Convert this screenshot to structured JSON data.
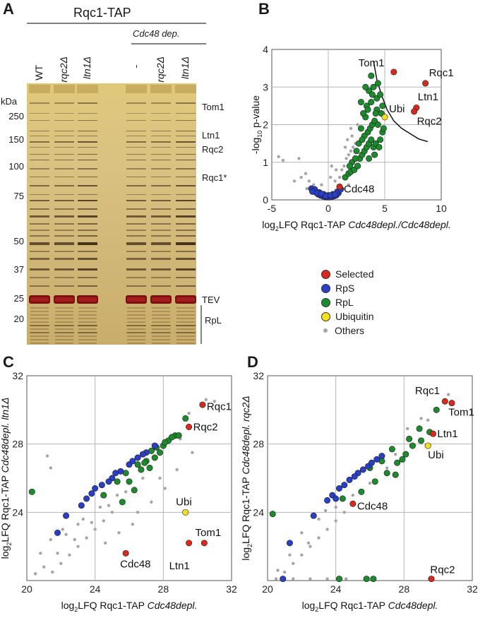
{
  "panels": {
    "a": {
      "letter": "A",
      "title": "Rqc1-TAP",
      "subgroup": "Cdc48 dep.",
      "kda_label": "kDa",
      "lanes": [
        "WT",
        "rqc2Δ",
        "ltn1Δ",
        "",
        "-",
        "rqc2Δ",
        "ltn1Δ"
      ],
      "markers": [
        "250",
        "150",
        "100",
        "75",
        "50",
        "37",
        "25",
        "20"
      ],
      "band_labels": [
        "Tom1",
        "Ltn1",
        "Rqc2",
        "Rqc1*",
        "TEV",
        "RpL"
      ]
    },
    "b": {
      "letter": "B"
    },
    "c": {
      "letter": "C"
    },
    "d": {
      "letter": "D"
    }
  },
  "legend": {
    "items": [
      {
        "label": "Selected",
        "color": "#d62a20"
      },
      {
        "label": "RpS",
        "color": "#2a3fc4"
      },
      {
        "label": "RpL",
        "color": "#1e8a2e"
      },
      {
        "label": "Ubiquitin",
        "color": "#f2e020"
      },
      {
        "label": "Others",
        "color": "#a6a6a6"
      }
    ]
  },
  "chart_data": [
    {
      "id": "B",
      "type": "scatter",
      "xlabel_main": "log",
      "xlabel_sub": "2",
      "xlabel_rest": "LFQ Rqc1-TAP ",
      "xlabel_italic": "Cdc48depl./Cdc48depl.",
      "ylabel_pre": "-log",
      "ylabel_sub": "10",
      "ylabel_post": " p-value",
      "xlim": [
        -5,
        10
      ],
      "ylim": [
        0,
        4
      ],
      "xticks": [
        "-5",
        "0",
        "5",
        "10"
      ],
      "yticks": [
        "0",
        "1",
        "2",
        "3",
        "4"
      ],
      "labels": [
        {
          "text": "Tom1",
          "x": 5.8,
          "y": 3.4
        },
        {
          "text": "Rqc1",
          "x": 8.6,
          "y": 3.1
        },
        {
          "text": "Ltn1",
          "x": 7.8,
          "y": 2.4
        },
        {
          "text": "Rqc2",
          "x": 7.6,
          "y": 2.3
        },
        {
          "text": "Ubi",
          "x": 5.0,
          "y": 2.2
        },
        {
          "text": "Cdc48",
          "x": 1.0,
          "y": 0.35
        }
      ],
      "selected": [
        [
          5.8,
          3.4
        ],
        [
          8.6,
          3.1
        ],
        [
          7.8,
          2.45
        ],
        [
          7.6,
          2.35
        ],
        [
          1.0,
          0.35
        ]
      ],
      "ubiquitin": [
        [
          5.0,
          2.2
        ]
      ],
      "rps": [
        [
          -1.5,
          0.3
        ],
        [
          -1.3,
          0.25
        ],
        [
          -1.1,
          0.2
        ],
        [
          -0.9,
          0.15
        ],
        [
          -0.7,
          0.12
        ],
        [
          -0.5,
          0.1
        ],
        [
          -0.3,
          0.08
        ],
        [
          -0.1,
          0.07
        ],
        [
          0.1,
          0.07
        ],
        [
          0.3,
          0.08
        ],
        [
          0.5,
          0.1
        ],
        [
          0.7,
          0.12
        ],
        [
          0.9,
          0.18
        ],
        [
          -1.2,
          0.28
        ],
        [
          -0.8,
          0.2
        ],
        [
          -0.4,
          0.15
        ],
        [
          0.0,
          0.12
        ],
        [
          0.4,
          0.15
        ],
        [
          0.8,
          0.22
        ],
        [
          1.1,
          0.28
        ],
        [
          -1.4,
          0.22
        ],
        [
          -1.0,
          0.18
        ],
        [
          -0.6,
          0.16
        ],
        [
          -0.2,
          0.1
        ],
        [
          0.2,
          0.12
        ],
        [
          0.6,
          0.14
        ]
      ],
      "rpl": [
        [
          1.5,
          0.6
        ],
        [
          1.8,
          0.7
        ],
        [
          2.0,
          0.75
        ],
        [
          2.3,
          0.8
        ],
        [
          2.6,
          0.9
        ],
        [
          2.1,
          1.0
        ],
        [
          2.8,
          1.1
        ],
        [
          3.0,
          1.2
        ],
        [
          3.2,
          1.3
        ],
        [
          3.4,
          1.4
        ],
        [
          3.6,
          1.5
        ],
        [
          3.8,
          1.6
        ],
        [
          4.0,
          1.4
        ],
        [
          4.2,
          1.5
        ],
        [
          3.5,
          1.8
        ],
        [
          3.7,
          1.9
        ],
        [
          3.9,
          2.0
        ],
        [
          4.1,
          2.1
        ],
        [
          3.3,
          2.2
        ],
        [
          3.1,
          2.3
        ],
        [
          2.9,
          1.9
        ],
        [
          3.4,
          2.5
        ],
        [
          3.8,
          2.6
        ],
        [
          4.3,
          2.7
        ],
        [
          4.6,
          2.8
        ],
        [
          3.6,
          2.9
        ],
        [
          4.0,
          3.0
        ],
        [
          4.4,
          3.1
        ],
        [
          3.8,
          3.3
        ],
        [
          4.3,
          2.4
        ],
        [
          4.7,
          2.3
        ],
        [
          4.8,
          1.8
        ],
        [
          4.5,
          1.4
        ],
        [
          4.9,
          1.9
        ],
        [
          3.2,
          1.7
        ],
        [
          2.7,
          1.5
        ],
        [
          2.5,
          1.3
        ],
        [
          4.1,
          1.2
        ],
        [
          3.0,
          1.6
        ],
        [
          4.4,
          2.0
        ],
        [
          4.6,
          1.6
        ],
        [
          3.6,
          1.1
        ],
        [
          2.4,
          1.1
        ],
        [
          1.9,
          0.9
        ],
        [
          3.9,
          2.8
        ],
        [
          4.2,
          2.3
        ],
        [
          3.5,
          2.4
        ],
        [
          4.8,
          2.5
        ],
        [
          2.9,
          2.6
        ],
        [
          3.3,
          3.0
        ]
      ],
      "others": [
        [
          -3.0,
          0.5
        ],
        [
          -2.4,
          0.6
        ],
        [
          -2.0,
          0.7
        ],
        [
          -1.7,
          0.5
        ],
        [
          -1.3,
          0.4
        ],
        [
          0.2,
          0.6
        ],
        [
          0.6,
          0.5
        ],
        [
          1.0,
          0.6
        ],
        [
          1.2,
          0.8
        ],
        [
          1.4,
          0.9
        ],
        [
          1.6,
          1.1
        ],
        [
          1.8,
          1.2
        ],
        [
          2.0,
          1.3
        ],
        [
          2.2,
          1.4
        ],
        [
          2.4,
          1.5
        ],
        [
          1.7,
          1.6
        ],
        [
          2.1,
          1.7
        ],
        [
          1.3,
          0.3
        ],
        [
          1.8,
          0.4
        ],
        [
          0.9,
          0.35
        ],
        [
          -0.6,
          0.4
        ],
        [
          -1.9,
          0.3
        ],
        [
          -2.6,
          1.1
        ],
        [
          -4.0,
          1.05
        ],
        [
          -4.4,
          1.15
        ],
        [
          2.6,
          2.0
        ],
        [
          2.0,
          1.9
        ],
        [
          1.5,
          1.4
        ],
        [
          0.7,
          0.8
        ],
        [
          0.3,
          0.9
        ]
      ],
      "threshold_curve": [
        [
          4.0,
          3.7
        ],
        [
          4.3,
          3.2
        ],
        [
          4.7,
          2.8
        ],
        [
          5.2,
          2.4
        ],
        [
          5.8,
          2.1
        ],
        [
          6.5,
          1.9
        ],
        [
          7.3,
          1.75
        ],
        [
          8.0,
          1.62
        ],
        [
          8.8,
          1.55
        ]
      ]
    },
    {
      "id": "C",
      "type": "scatter",
      "xlabel_main": "log",
      "xlabel_sub": "2",
      "xlabel_rest": "LFQ Rqc1-TAP ",
      "xlabel_italic": "Cdc48depl.",
      "ylabel_pre": "log",
      "ylabel_sub": "2",
      "ylabel_post": "LFQ Rqc1-TAP ",
      "ylabel_italic": "Cdc48depl. ltn1Δ",
      "xlim": [
        20,
        32
      ],
      "ylim": [
        20,
        32
      ],
      "xticks": [
        "20",
        "24",
        "28",
        "32"
      ],
      "yticks": [
        "24",
        "28",
        "32"
      ],
      "labels": [
        {
          "text": "Rqc1",
          "x": 30.3,
          "y": 30.2
        },
        {
          "text": "Rqc2",
          "x": 29.5,
          "y": 29.0
        },
        {
          "text": "Ubi",
          "x": 29.4,
          "y": 24.0
        },
        {
          "text": "Tom1",
          "x": 30.2,
          "y": 22.2
        },
        {
          "text": "Ltn1",
          "x": 29.5,
          "y": 21.5
        },
        {
          "text": "Cdc48",
          "x": 25.8,
          "y": 21.6
        }
      ],
      "selected": [
        [
          30.3,
          30.3
        ],
        [
          29.5,
          29.0
        ],
        [
          30.4,
          22.2
        ],
        [
          29.5,
          22.2
        ],
        [
          25.8,
          21.6
        ]
      ],
      "ubiquitin": [
        [
          29.3,
          24.0
        ]
      ],
      "rps": [
        [
          22.3,
          23.8
        ],
        [
          21.8,
          22.8
        ],
        [
          23.2,
          24.4
        ],
        [
          23.8,
          25.1
        ],
        [
          24.4,
          25.6
        ],
        [
          25.0,
          26.0
        ],
        [
          25.5,
          26.4
        ],
        [
          26.0,
          26.8
        ],
        [
          26.5,
          27.2
        ],
        [
          27.0,
          27.5
        ],
        [
          27.5,
          27.9
        ],
        [
          24.0,
          25.4
        ],
        [
          25.2,
          26.3
        ],
        [
          26.2,
          27.0
        ],
        [
          24.8,
          25.8
        ],
        [
          23.5,
          24.8
        ],
        [
          26.8,
          27.4
        ]
      ],
      "rpl": [
        [
          20.3,
          25.2
        ],
        [
          24.5,
          25.0
        ],
        [
          25.6,
          24.6
        ],
        [
          26.3,
          25.3
        ],
        [
          27.2,
          26.6
        ],
        [
          26.7,
          26.5
        ],
        [
          27.8,
          27.5
        ],
        [
          28.3,
          28.2
        ],
        [
          28.7,
          28.5
        ],
        [
          28.0,
          27.9
        ],
        [
          27.5,
          27.2
        ],
        [
          27.0,
          27.0
        ],
        [
          26.5,
          26.8
        ],
        [
          25.8,
          26.3
        ],
        [
          25.3,
          25.8
        ],
        [
          26.0,
          25.8
        ],
        [
          27.3,
          27.6
        ],
        [
          28.5,
          28.4
        ],
        [
          29.3,
          29.5
        ],
        [
          28.9,
          28.5
        ],
        [
          27.6,
          27.8
        ],
        [
          26.9,
          26.9
        ],
        [
          28.1,
          28.1
        ]
      ],
      "others": [
        [
          21.5,
          20.5
        ],
        [
          22.0,
          21.0
        ],
        [
          22.5,
          21.5
        ],
        [
          23.0,
          22.0
        ],
        [
          23.5,
          22.5
        ],
        [
          24.0,
          23.0
        ],
        [
          24.5,
          23.5
        ],
        [
          25.0,
          24.0
        ],
        [
          21.0,
          20.8
        ],
        [
          21.8,
          21.6
        ],
        [
          22.8,
          22.4
        ],
        [
          23.8,
          23.4
        ],
        [
          24.8,
          24.4
        ],
        [
          25.8,
          25.2
        ],
        [
          26.8,
          26.0
        ],
        [
          22.3,
          22.7
        ],
        [
          23.3,
          23.6
        ],
        [
          24.3,
          24.3
        ],
        [
          25.3,
          25.0
        ],
        [
          20.8,
          21.6
        ],
        [
          21.4,
          22.4
        ],
        [
          22.1,
          23.0
        ],
        [
          23.0,
          23.3
        ],
        [
          21.2,
          27.3
        ],
        [
          21.4,
          26.6
        ],
        [
          24.6,
          22.2
        ],
        [
          25.4,
          22.8
        ],
        [
          26.2,
          23.3
        ],
        [
          27.3,
          24.6
        ],
        [
          28.1,
          25.4
        ],
        [
          28.8,
          26.5
        ],
        [
          29.7,
          27.5
        ],
        [
          29.0,
          28.3
        ],
        [
          20.5,
          20.4
        ],
        [
          26.5,
          24.0
        ],
        [
          27.8,
          26.0
        ],
        [
          29.5,
          29.8
        ],
        [
          30.5,
          30.6
        ],
        [
          31.0,
          30.5
        ]
      ]
    },
    {
      "id": "D",
      "type": "scatter",
      "xlabel_main": "log",
      "xlabel_sub": "2",
      "xlabel_rest": "LFQ Rqc1-TAP ",
      "xlabel_italic": "Cdc48depl.",
      "ylabel_pre": "log",
      "ylabel_sub": "2",
      "ylabel_post": "LFQ Rqc1-TAP ",
      "ylabel_italic": "Cdc48depl. rqc2Δ",
      "xlim": [
        20,
        32
      ],
      "ylim": [
        20,
        32
      ],
      "xticks": [
        "20",
        "24",
        "28",
        "32"
      ],
      "yticks": [
        "24",
        "28",
        "32"
      ],
      "labels": [
        {
          "text": "Rqc1",
          "x": 30.3,
          "y": 30.6
        },
        {
          "text": "Tom1",
          "x": 30.6,
          "y": 30.4
        },
        {
          "text": "Ltn1",
          "x": 29.7,
          "y": 28.6
        },
        {
          "text": "Ubi",
          "x": 29.4,
          "y": 27.9
        },
        {
          "text": "Cdc48",
          "x": 25.0,
          "y": 24.5
        },
        {
          "text": "Rqc2",
          "x": 29.7,
          "y": 20.1
        }
      ],
      "selected": [
        [
          30.4,
          30.5
        ],
        [
          30.8,
          30.4
        ],
        [
          29.7,
          28.6
        ],
        [
          25.0,
          24.5
        ],
        [
          29.6,
          20.1
        ]
      ],
      "ubiquitin": [
        [
          29.4,
          27.9
        ]
      ],
      "rps": [
        [
          20.9,
          20.1
        ],
        [
          21.3,
          22.2
        ],
        [
          22.7,
          23.8
        ],
        [
          23.5,
          24.7
        ],
        [
          24.2,
          25.4
        ],
        [
          24.8,
          25.9
        ],
        [
          25.3,
          26.3
        ],
        [
          25.9,
          26.7
        ],
        [
          26.4,
          27.1
        ],
        [
          24.5,
          25.6
        ],
        [
          25.6,
          26.5
        ],
        [
          23.8,
          25.0
        ],
        [
          26.1,
          26.9
        ],
        [
          25.1,
          26.1
        ],
        [
          24.0,
          24.8
        ],
        [
          26.7,
          27.3
        ]
      ],
      "rpl": [
        [
          20.3,
          23.9
        ],
        [
          24.4,
          24.8
        ],
        [
          25.5,
          25.2
        ],
        [
          26.3,
          25.8
        ],
        [
          27.0,
          26.3
        ],
        [
          27.6,
          26.9
        ],
        [
          28.1,
          27.4
        ],
        [
          28.5,
          27.9
        ],
        [
          29.0,
          28.2
        ],
        [
          29.5,
          28.7
        ],
        [
          29.9,
          30.0
        ],
        [
          27.3,
          27.7
        ],
        [
          26.7,
          27.0
        ],
        [
          28.9,
          28.9
        ],
        [
          27.9,
          27.1
        ],
        [
          26.0,
          26.6
        ],
        [
          25.8,
          20.1
        ],
        [
          26.2,
          20.1
        ],
        [
          24.2,
          20.1
        ],
        [
          27.5,
          26.2
        ],
        [
          28.3,
          28.3
        ]
      ],
      "others": [
        [
          21.0,
          20.5
        ],
        [
          21.5,
          21.0
        ],
        [
          22.0,
          21.5
        ],
        [
          22.5,
          22.0
        ],
        [
          23.0,
          22.5
        ],
        [
          23.5,
          23.0
        ],
        [
          24.0,
          23.5
        ],
        [
          24.5,
          24.0
        ],
        [
          25.0,
          24.5
        ],
        [
          22.0,
          22.8
        ],
        [
          23.0,
          23.6
        ],
        [
          24.0,
          24.3
        ],
        [
          25.0,
          25.0
        ],
        [
          26.0,
          25.7
        ],
        [
          27.0,
          26.6
        ],
        [
          21.3,
          21.5
        ],
        [
          22.4,
          22.2
        ],
        [
          23.4,
          24.1
        ],
        [
          20.5,
          20.1
        ],
        [
          21.5,
          20.1
        ],
        [
          22.5,
          20.1
        ],
        [
          23.5,
          20.1
        ],
        [
          24.6,
          20.1
        ],
        [
          20.6,
          20.6
        ],
        [
          28.2,
          28.9
        ],
        [
          29.4,
          29.4
        ],
        [
          30.6,
          30.9
        ],
        [
          29.0,
          29.5
        ],
        [
          27.5,
          27.4
        ]
      ]
    }
  ]
}
